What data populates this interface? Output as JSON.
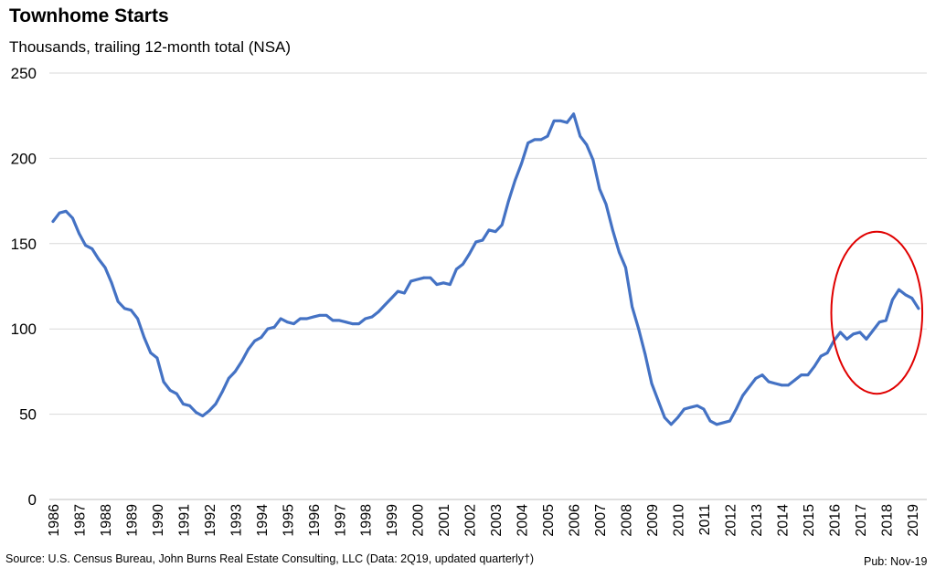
{
  "header": {
    "title": "Townhome Starts",
    "subtitle": "Thousands, trailing 12-month total (NSA)"
  },
  "footer": {
    "source": "Source: U.S. Census Bureau, John Burns Real Estate Consulting, LLC (Data: 2Q19, updated quarterly†)",
    "pub": "Pub: Nov-19"
  },
  "chart_data": {
    "type": "line",
    "title": "Townhome Starts",
    "subtitle": "Thousands, trailing 12-month total (NSA)",
    "ylim": [
      0,
      250
    ],
    "yticks": [
      0,
      50,
      100,
      150,
      200,
      250
    ],
    "grid": true,
    "x_tick_labels": [
      "1986",
      "1987",
      "1988",
      "1989",
      "1990",
      "1991",
      "1992",
      "1993",
      "1994",
      "1995",
      "1996",
      "1997",
      "1998",
      "1999",
      "2000",
      "2001",
      "2002",
      "2003",
      "2004",
      "2005",
      "2006",
      "2007",
      "2008",
      "2009",
      "2010",
      "2011",
      "2012",
      "2013",
      "2014",
      "2015",
      "2016",
      "2017",
      "2018",
      "2019"
    ],
    "x_start": 1986.0,
    "x_end": 2019.5,
    "line_color": "#4472C4",
    "annotation_color": "#E00000",
    "annotation": {
      "type": "circle",
      "x_range": [
        2015.9,
        2019.4
      ],
      "y_range": [
        62,
        157
      ]
    },
    "series": [
      {
        "name": "",
        "points": [
          [
            1986.0,
            163
          ],
          [
            1986.25,
            168
          ],
          [
            1986.5,
            169
          ],
          [
            1986.75,
            165
          ],
          [
            1987.0,
            156
          ],
          [
            1987.25,
            149
          ],
          [
            1987.5,
            147
          ],
          [
            1987.75,
            141
          ],
          [
            1988.0,
            136
          ],
          [
            1988.25,
            127
          ],
          [
            1988.5,
            116
          ],
          [
            1988.75,
            112
          ],
          [
            1989.0,
            111
          ],
          [
            1989.25,
            106
          ],
          [
            1989.5,
            95
          ],
          [
            1989.75,
            86
          ],
          [
            1990.0,
            83
          ],
          [
            1990.25,
            69
          ],
          [
            1990.5,
            64
          ],
          [
            1990.75,
            62
          ],
          [
            1991.0,
            56
          ],
          [
            1991.25,
            55
          ],
          [
            1991.5,
            51
          ],
          [
            1991.75,
            49
          ],
          [
            1992.0,
            52
          ],
          [
            1992.25,
            56
          ],
          [
            1992.5,
            63
          ],
          [
            1992.75,
            71
          ],
          [
            1993.0,
            75
          ],
          [
            1993.25,
            81
          ],
          [
            1993.5,
            88
          ],
          [
            1993.75,
            93
          ],
          [
            1994.0,
            95
          ],
          [
            1994.25,
            100
          ],
          [
            1994.5,
            101
          ],
          [
            1994.75,
            106
          ],
          [
            1995.0,
            104
          ],
          [
            1995.25,
            103
          ],
          [
            1995.5,
            106
          ],
          [
            1995.75,
            106
          ],
          [
            1996.0,
            107
          ],
          [
            1996.25,
            108
          ],
          [
            1996.5,
            108
          ],
          [
            1996.75,
            105
          ],
          [
            1997.0,
            105
          ],
          [
            1997.25,
            104
          ],
          [
            1997.5,
            103
          ],
          [
            1997.75,
            103
          ],
          [
            1998.0,
            106
          ],
          [
            1998.25,
            107
          ],
          [
            1998.5,
            110
          ],
          [
            1998.75,
            114
          ],
          [
            1999.0,
            118
          ],
          [
            1999.25,
            122
          ],
          [
            1999.5,
            121
          ],
          [
            1999.75,
            128
          ],
          [
            2000.0,
            129
          ],
          [
            2000.25,
            130
          ],
          [
            2000.5,
            130
          ],
          [
            2000.75,
            126
          ],
          [
            2001.0,
            127
          ],
          [
            2001.25,
            126
          ],
          [
            2001.5,
            135
          ],
          [
            2001.75,
            138
          ],
          [
            2002.0,
            144
          ],
          [
            2002.25,
            151
          ],
          [
            2002.5,
            152
          ],
          [
            2002.75,
            158
          ],
          [
            2003.0,
            157
          ],
          [
            2003.25,
            161
          ],
          [
            2003.5,
            175
          ],
          [
            2003.75,
            187
          ],
          [
            2004.0,
            197
          ],
          [
            2004.25,
            209
          ],
          [
            2004.5,
            211
          ],
          [
            2004.75,
            211
          ],
          [
            2005.0,
            213
          ],
          [
            2005.25,
            222
          ],
          [
            2005.5,
            222
          ],
          [
            2005.75,
            221
          ],
          [
            2006.0,
            226
          ],
          [
            2006.25,
            213
          ],
          [
            2006.5,
            208
          ],
          [
            2006.75,
            199
          ],
          [
            2007.0,
            182
          ],
          [
            2007.25,
            173
          ],
          [
            2007.5,
            158
          ],
          [
            2007.75,
            145
          ],
          [
            2008.0,
            136
          ],
          [
            2008.25,
            113
          ],
          [
            2008.5,
            100
          ],
          [
            2008.75,
            85
          ],
          [
            2009.0,
            68
          ],
          [
            2009.25,
            58
          ],
          [
            2009.5,
            48
          ],
          [
            2009.75,
            44
          ],
          [
            2010.0,
            48
          ],
          [
            2010.25,
            53
          ],
          [
            2010.5,
            54
          ],
          [
            2010.75,
            55
          ],
          [
            2011.0,
            53
          ],
          [
            2011.25,
            46
          ],
          [
            2011.5,
            44
          ],
          [
            2011.75,
            45
          ],
          [
            2012.0,
            46
          ],
          [
            2012.25,
            53
          ],
          [
            2012.5,
            61
          ],
          [
            2012.75,
            66
          ],
          [
            2013.0,
            71
          ],
          [
            2013.25,
            73
          ],
          [
            2013.5,
            69
          ],
          [
            2013.75,
            68
          ],
          [
            2014.0,
            67
          ],
          [
            2014.25,
            67
          ],
          [
            2014.5,
            70
          ],
          [
            2014.75,
            73
          ],
          [
            2015.0,
            73
          ],
          [
            2015.25,
            78
          ],
          [
            2015.5,
            84
          ],
          [
            2015.75,
            86
          ],
          [
            2016.0,
            93
          ],
          [
            2016.25,
            98
          ],
          [
            2016.5,
            94
          ],
          [
            2016.75,
            97
          ],
          [
            2017.0,
            98
          ],
          [
            2017.25,
            94
          ],
          [
            2017.5,
            99
          ],
          [
            2017.75,
            104
          ],
          [
            2018.0,
            105
          ],
          [
            2018.25,
            117
          ],
          [
            2018.5,
            123
          ],
          [
            2018.75,
            120
          ],
          [
            2019.0,
            118
          ],
          [
            2019.25,
            112
          ]
        ]
      }
    ]
  }
}
